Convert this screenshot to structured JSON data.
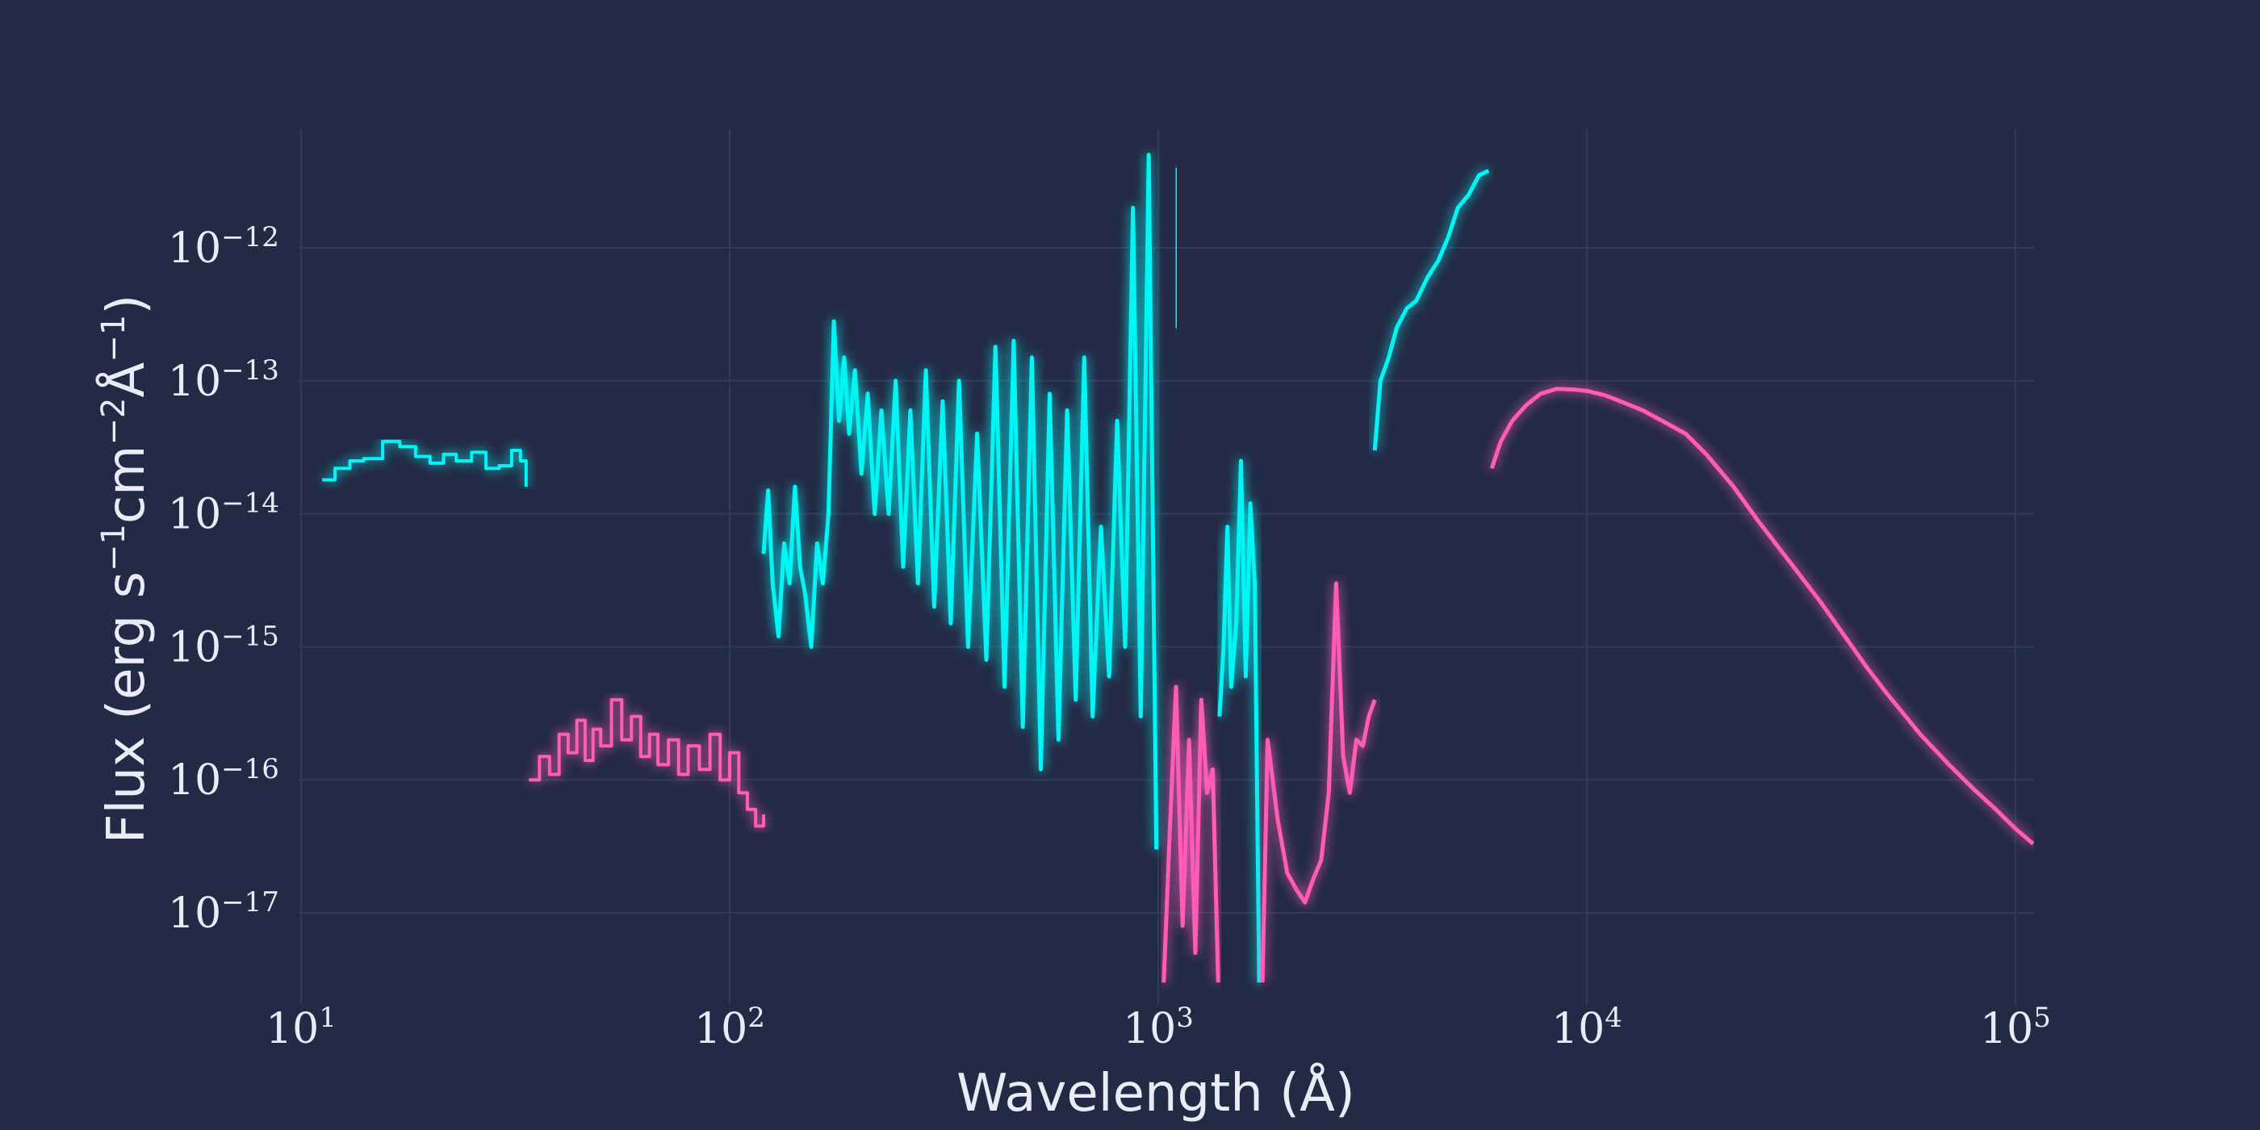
{
  "chart_data": {
    "type": "line",
    "title": "",
    "xlabel": "Wavelength (Å)",
    "ylabel": {
      "parts": [
        {
          "t": "Flux (erg s",
          "sup": false
        },
        {
          "t": "−1",
          "sup": true
        },
        {
          "t": "cm",
          "sup": false
        },
        {
          "t": "−2",
          "sup": true
        },
        {
          "t": "Å",
          "sup": false
        },
        {
          "t": "−1",
          "sup": true
        },
        {
          "t": ")",
          "sup": false
        }
      ]
    },
    "x_scale": "log",
    "y_scale": "log",
    "xlim": [
      10,
      110000
    ],
    "ylim": [
      3e-18,
      8e-12
    ],
    "x_ticks": [
      {
        "value": 10,
        "base": "10",
        "exp": "1"
      },
      {
        "value": 100,
        "base": "10",
        "exp": "2"
      },
      {
        "value": 1000,
        "base": "10",
        "exp": "3"
      },
      {
        "value": 10000,
        "base": "10",
        "exp": "4"
      },
      {
        "value": 100000,
        "base": "10",
        "exp": "5"
      }
    ],
    "y_ticks": [
      {
        "value": 1e-12,
        "base": "10",
        "exp": "−12"
      },
      {
        "value": 1e-13,
        "base": "10",
        "exp": "−13"
      },
      {
        "value": 1e-14,
        "base": "10",
        "exp": "−14"
      },
      {
        "value": 1e-15,
        "base": "10",
        "exp": "−15"
      },
      {
        "value": 1e-16,
        "base": "10",
        "exp": "−16"
      },
      {
        "value": 1e-17,
        "base": "10",
        "exp": "−17"
      }
    ],
    "grid": true,
    "legend": "none",
    "colors": {
      "background": "#232a45",
      "cyan": "#00f5f5",
      "pink": "#ff5cb8",
      "text": "#e9ecf5"
    },
    "series": [
      {
        "color": "cyan",
        "segments": [
          {
            "step": true,
            "x": [
              11.2,
              12,
              13,
              14,
              15.5,
              17,
              18.5,
              20,
              21.5,
              23,
              25,
              27,
              29,
              31,
              32.5,
              33.5
            ],
            "y": [
              1.8e-14,
              2.2e-14,
              2.5e-14,
              2.6e-14,
              3.5e-14,
              3.2e-14,
              2.7e-14,
              2.4e-14,
              2.8e-14,
              2.5e-14,
              2.9e-14,
              2.2e-14,
              2.3e-14,
              3e-14,
              2.5e-14,
              1.6e-14
            ]
          },
          {
            "x": [
              120,
              123,
              126,
              130,
              134,
              138,
              142,
              146,
              150,
              155,
              160,
              165,
              170,
              175,
              180,
              185,
              190,
              196,
              203,
              210,
              218,
              226,
              235,
              244,
              254,
              264,
              275,
              287,
              300,
              314,
              328,
              343,
              360,
              378,
              397,
              417,
              438,
              460,
              483,
              507,
              532,
              558,
              585,
              613,
              642,
              672,
              703,
              735,
              768,
              802,
              837,
              873,
              910,
              950,
              990
            ],
            "y": [
              5e-15,
              1.5e-14,
              3e-15,
              1.2e-15,
              6e-15,
              3e-15,
              1.6e-14,
              4e-15,
              2.5e-15,
              1e-15,
              6e-15,
              3e-15,
              1e-14,
              2.8e-13,
              5e-14,
              1.5e-13,
              4e-14,
              1.2e-13,
              2e-14,
              8e-14,
              1e-14,
              6e-14,
              1e-14,
              1e-13,
              4e-15,
              6e-14,
              3e-15,
              1.2e-13,
              2e-15,
              7e-14,
              1.5e-15,
              1e-13,
              1e-15,
              4e-14,
              8e-16,
              1.8e-13,
              5e-16,
              2e-13,
              2.5e-16,
              1.5e-13,
              1.2e-16,
              8e-14,
              2e-16,
              6e-14,
              4e-16,
              1.5e-13,
              3e-16,
              8e-15,
              6e-16,
              5e-14,
              1e-15,
              2e-12,
              3e-16,
              5e-12,
              3e-17
            ]
          },
          {
            "x": [
              1100,
              1103
            ],
            "y": [
              2.5e-13,
              4e-12
            ]
          },
          {
            "x": [
              1390,
              1420,
              1450,
              1480,
              1520,
              1560,
              1600,
              1640,
              1680,
              1720
            ],
            "y": [
              3e-16,
              1e-15,
              8e-15,
              5e-16,
              1.5e-15,
              2.5e-14,
              6e-16,
              1.2e-14,
              3e-15,
              3e-18
            ]
          },
          {
            "x": [
              3200,
              3300,
              3450,
              3600,
              3800,
              4000,
              4250,
              4500,
              4750,
              5000,
              5300,
              5600,
              5900
            ],
            "y": [
              3e-14,
              1e-13,
              1.5e-13,
              2.5e-13,
              3.5e-13,
              4e-13,
              6e-13,
              8e-13,
              1.2e-12,
              2e-12,
              2.5e-12,
              3.5e-12,
              3.8e-12
            ]
          }
        ]
      },
      {
        "color": "pink",
        "segments": [
          {
            "step": true,
            "x": [
              34,
              36,
              38,
              40,
              42,
              44,
              46,
              48,
              50,
              53,
              56,
              59,
              62,
              65,
              68,
              72,
              76,
              80,
              85,
              90,
              95,
              100,
              105,
              110,
              115,
              120
            ],
            "y": [
              1e-16,
              1.5e-16,
              1.1e-16,
              2.2e-16,
              1.6e-16,
              2.8e-16,
              1.4e-16,
              2.4e-16,
              1.8e-16,
              4e-16,
              2e-16,
              3e-16,
              1.5e-16,
              2.2e-16,
              1.3e-16,
              2e-16,
              1.1e-16,
              1.8e-16,
              1.2e-16,
              2.2e-16,
              1e-16,
              1.6e-16,
              8e-17,
              6e-17,
              4.5e-17,
              5.5e-17
            ]
          },
          {
            "x": [
              1030,
              1060,
              1100,
              1140,
              1180,
              1220,
              1260,
              1300,
              1340,
              1380
            ],
            "y": [
              3e-18,
              3e-17,
              5e-16,
              8e-18,
              2e-16,
              5e-18,
              4e-16,
              8e-17,
              1.2e-16,
              3e-18
            ]
          },
          {
            "x": [
              1750,
              1800,
              1900,
              2000,
              2100,
              2200,
              2300,
              2400,
              2500,
              2600,
              2700,
              2800,
              2900,
              3000,
              3100,
              3200
            ],
            "y": [
              3e-18,
              2e-16,
              5e-17,
              2e-17,
              1.5e-17,
              1.2e-17,
              1.8e-17,
              2.5e-17,
              8e-17,
              3e-15,
              1.5e-16,
              8e-17,
              2e-16,
              1.8e-16,
              3e-16,
              4e-16
            ]
          },
          {
            "x": [
              6000,
              6300,
              6700,
              7200,
              7800,
              8500,
              9300,
              10000,
              11000,
              12000,
              13500,
              15000,
              17000,
              19000,
              22000,
              25000,
              30000,
              35000,
              40000,
              45000,
              50000,
              60000,
              70000,
              80000,
              90000,
              100000,
              110000
            ],
            "y": [
              2.2e-14,
              3.5e-14,
              5e-14,
              6.5e-14,
              8e-14,
              8.7e-14,
              8.6e-14,
              8.4e-14,
              7.8e-14,
              7e-14,
              6e-14,
              5e-14,
              4e-14,
              2.8e-14,
              1.6e-14,
              9e-15,
              4.2e-15,
              2.2e-15,
              1.2e-15,
              7e-16,
              4.5e-16,
              2.2e-16,
              1.3e-16,
              8.5e-17,
              6e-17,
              4.3e-17,
              3.3e-17
            ]
          }
        ]
      }
    ]
  }
}
